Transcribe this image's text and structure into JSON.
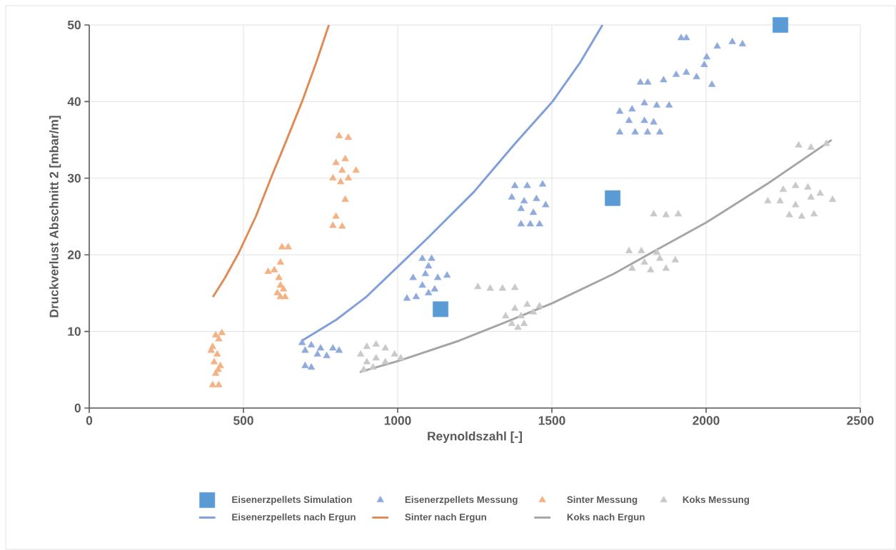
{
  "chart_data": {
    "type": "scatter",
    "xlabel": "Reynoldszahl [-]",
    "ylabel": "Druckverlust Abschnitt 2 [mbar/m]",
    "xlim": [
      0,
      2500
    ],
    "ylim": [
      0,
      50
    ],
    "xticks": [
      0,
      500,
      1000,
      1500,
      2000,
      2500
    ],
    "yticks": [
      0,
      10,
      20,
      30,
      40,
      50
    ],
    "grid": true,
    "legend": "bottom",
    "series": [
      {
        "name": "Eisenerzpellets Simulation",
        "marker": "square",
        "color": "#5b9bd5",
        "x": [
          1139,
          1697,
          2241
        ],
        "values": [
          12.9,
          27.4,
          50
        ]
      },
      {
        "name": "Eisenerzpellets Messung",
        "marker": "triangle",
        "color": "#8faadc",
        "x": [
          690,
          720,
          750,
          790,
          810,
          700,
          740,
          770,
          700,
          720,
          1030,
          1060,
          1100,
          1080,
          1120,
          1050,
          1090,
          1130,
          1160,
          1100,
          1080,
          1110,
          1380,
          1420,
          1470,
          1370,
          1410,
          1450,
          1480,
          1400,
          1440,
          1400,
          1430,
          1460,
          1720,
          1760,
          1800,
          1840,
          1880,
          1750,
          1800,
          1830,
          1720,
          1770,
          1810,
          1850,
          1787,
          1811,
          1862,
          1903,
          1936,
          1969,
          2019,
          1994,
          2002,
          2036,
          2085,
          2118,
          1919,
          1936
        ],
        "values": [
          8.5,
          8.2,
          7.8,
          7.8,
          7.5,
          7.5,
          7,
          6.8,
          5.5,
          5.3,
          14.3,
          14.5,
          15,
          16,
          15.5,
          17,
          17.5,
          17,
          17.3,
          18.5,
          19.5,
          19.5,
          29,
          29,
          29.2,
          27.5,
          27,
          27.3,
          26.5,
          26,
          25.5,
          24,
          24,
          24,
          38.7,
          39,
          39.8,
          39.5,
          39.5,
          37.5,
          37.5,
          37.3,
          36,
          36,
          36,
          36,
          42.5,
          42.5,
          42.8,
          43.5,
          43.8,
          43.2,
          42.2,
          44.8,
          45.8,
          47.2,
          47.8,
          47.5,
          48.3,
          48.3
        ]
      },
      {
        "name": "Sinter Messung",
        "marker": "triangle",
        "color": "#f4b183",
        "x": [
          410,
          420,
          400,
          415,
          405,
          425,
          410,
          400,
          420,
          430,
          395,
          418,
          625,
          645,
          620,
          600,
          580,
          615,
          620,
          610,
          630,
          620,
          635,
          810,
          840,
          800,
          830,
          820,
          790,
          815,
          840,
          865,
          830,
          800,
          790,
          820
        ],
        "values": [
          9.5,
          9,
          8,
          7,
          6,
          5.5,
          4.5,
          3,
          3,
          9.8,
          7.5,
          5,
          21,
          21,
          19,
          18,
          17.8,
          17,
          16,
          15,
          15.5,
          14.5,
          14.5,
          35.5,
          35.3,
          32,
          32.5,
          31,
          30,
          29.5,
          30,
          31,
          27.2,
          25,
          23.8,
          23.7
        ]
      },
      {
        "name": "Koks Messung",
        "marker": "triangle",
        "color": "#c9c9c9",
        "x": [
          880,
          900,
          930,
          960,
          990,
          1010,
          900,
          930,
          960,
          890,
          920,
          1260,
          1300,
          1340,
          1380,
          1350,
          1380,
          1420,
          1460,
          1400,
          1440,
          1370,
          1410,
          1390,
          1830,
          1870,
          1910,
          1750,
          1790,
          1840,
          1800,
          1850,
          1900,
          1760,
          1820,
          1870,
          2300,
          2340,
          2390,
          2200,
          2250,
          2290,
          2330,
          2370,
          2410,
          2240,
          2290,
          2340,
          2270,
          2310,
          2350
        ],
        "values": [
          7,
          8,
          8.3,
          7.8,
          7,
          6.5,
          6,
          6.5,
          6,
          5,
          5.3,
          15.8,
          15.6,
          15.6,
          15.7,
          12,
          13,
          13.5,
          13.3,
          12,
          12.5,
          11,
          11,
          10.5,
          25.3,
          25.2,
          25.3,
          20.5,
          20.5,
          20.3,
          19,
          19.5,
          19.3,
          18.2,
          18,
          18.2,
          34.3,
          34,
          34.5,
          27,
          28.5,
          29,
          28.8,
          28,
          27.2,
          27,
          26.5,
          27.5,
          25.2,
          25,
          25.3
        ]
      },
      {
        "name": "Eisenerzpellets nach Ergun",
        "type": "line",
        "marker": "none",
        "color": "#7f9edb",
        "x": [
          690,
          800,
          898,
          1007,
          1100,
          1247,
          1380,
          1502,
          1590,
          1664
        ],
        "values": [
          8.8,
          11.5,
          14.5,
          18.7,
          22.3,
          28.2,
          34.5,
          40,
          45,
          50
        ]
      },
      {
        "name": "Sinter nach Ergun",
        "type": "line",
        "marker": "none",
        "color": "#e08a55",
        "x": [
          401,
          440,
          484,
          540,
          591,
          640,
          690,
          735,
          777
        ],
        "values": [
          14.5,
          17,
          20.2,
          25,
          30.2,
          35,
          40,
          45,
          50
        ]
      },
      {
        "name": "Koks nach Ergun",
        "type": "line",
        "marker": "none",
        "color": "#a5a5a5",
        "x": [
          877,
          1007,
          1200,
          1350,
          1502,
          1700,
          1833,
          2000,
          2200,
          2407
        ],
        "values": [
          4.7,
          6.2,
          8.8,
          11.2,
          13.7,
          17.5,
          20.5,
          24.2,
          29.3,
          35
        ]
      }
    ]
  }
}
